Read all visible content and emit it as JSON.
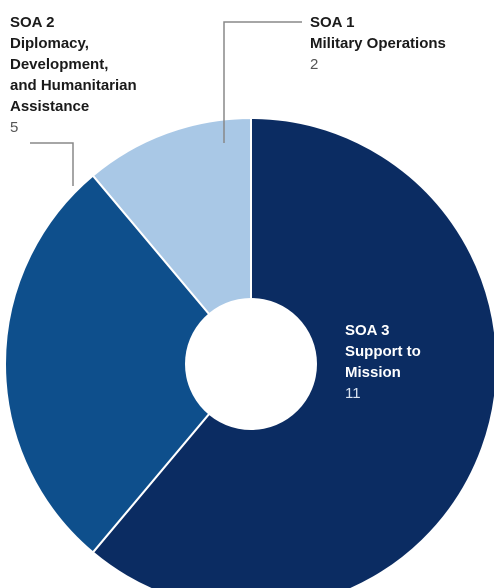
{
  "chart_data": {
    "type": "pie",
    "donut": true,
    "slices": [
      {
        "label_lines": [
          "SOA 3",
          "Support to",
          "Mission"
        ],
        "value": 11,
        "color": "#0b2c62"
      },
      {
        "label_lines": [
          "SOA 2",
          "Diplomacy,",
          "Development,",
          "and Humanitarian",
          "Assistance"
        ],
        "value": 5,
        "color": "#0e4f8c"
      },
      {
        "label_lines": [
          "SOA 1",
          "Military Operations"
        ],
        "value": 2,
        "color": "#a9c8e6"
      }
    ]
  }
}
